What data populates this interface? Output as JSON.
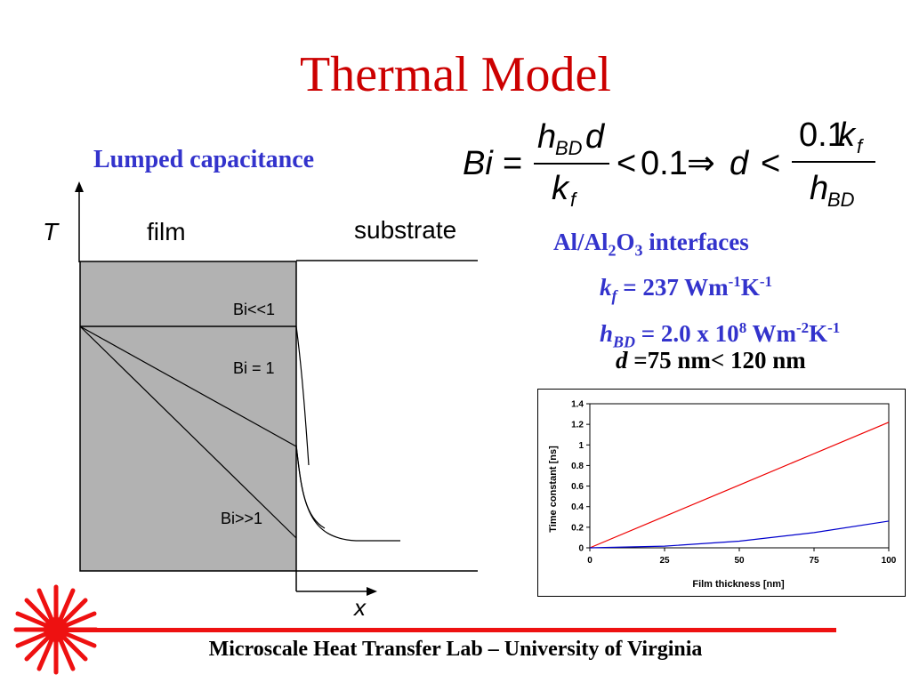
{
  "slide": {
    "title": "Thermal Model",
    "heading": "Lumped capacitance",
    "footer": "Microscale Heat Transfer Lab – University of Virginia"
  },
  "equation": {
    "bi": "Bi",
    "eq": "=",
    "num1_h": "h",
    "num1_sub": "BD",
    "num1_d": "d",
    "den1_k": "k",
    "den1_sub": "f",
    "lt1": "<",
    "val": "0.1",
    "implies": "⇒",
    "d": "d",
    "lt2": "<",
    "num2_val": "0.1",
    "num2_k": "k",
    "num2_sub": "f",
    "den2_h": "h",
    "den2_sub": "BD"
  },
  "properties": {
    "interface_pre": "Al/Al",
    "interface_sub1": "2",
    "interface_mid": "O",
    "interface_sub2": "3",
    "interface_post": " interfaces",
    "kf_sym": "k",
    "kf_sub": "f",
    "kf_val": " = 237 Wm",
    "kf_exp1": "-1",
    "kf_unit2": "K",
    "kf_exp2": "-1",
    "hbd_sym": "h",
    "hbd_sub": "BD",
    "hbd_val": " = 2.0 x 10",
    "hbd_pow": "8",
    "hbd_unit": " Wm",
    "hbd_exp1": "-2",
    "hbd_unit2": "K",
    "hbd_exp2": "-1",
    "d_sym": "d",
    "d_text": " =75 nm< 120 nm"
  },
  "diagram": {
    "t_label": "T",
    "film_label": "film",
    "substrate_label": "substrate",
    "x_label": "x",
    "bi_small": "Bi<<1",
    "bi_one": "Bi = 1",
    "bi_large": "Bi>>1",
    "film_color": "#b2b2b2"
  },
  "chart_data": {
    "type": "line",
    "xlabel": "Film thickness [nm]",
    "ylabel": "Time constant [ns]",
    "xlim": [
      0,
      100
    ],
    "ylim": [
      0,
      1.4
    ],
    "xticks": [
      0,
      25,
      50,
      75,
      100
    ],
    "yticks": [
      0,
      0.2,
      0.4,
      0.6,
      0.8,
      1,
      1.2,
      1.4
    ],
    "ytick_labels": [
      "0",
      "0.2",
      "0.4",
      "0.6",
      "0.8",
      "1",
      "1.2",
      "1.4"
    ],
    "series": [
      {
        "color": "#ee0000",
        "x": [
          0,
          25,
          50,
          75,
          100
        ],
        "y": [
          0,
          0.305,
          0.61,
          0.915,
          1.22
        ]
      },
      {
        "color": "#0000cc",
        "x": [
          0,
          25,
          50,
          75,
          100
        ],
        "y": [
          0,
          0.016,
          0.065,
          0.148,
          0.26
        ]
      }
    ],
    "grid": false
  }
}
